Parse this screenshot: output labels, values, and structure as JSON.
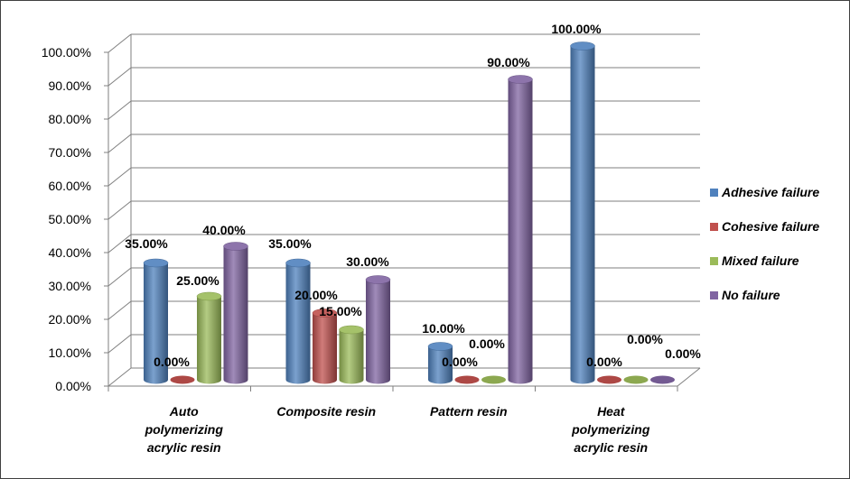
{
  "chart_data": {
    "type": "bar",
    "title": "",
    "xlabel": "",
    "ylabel": "",
    "ylim": [
      0,
      100
    ],
    "y_ticks": [
      "0.00%",
      "10.00%",
      "20.00%",
      "30.00%",
      "40.00%",
      "50.00%",
      "60.00%",
      "70.00%",
      "80.00%",
      "90.00%",
      "100.00%"
    ],
    "categories": [
      [
        "Auto",
        "polymerizing",
        "acrylic resin"
      ],
      [
        "Composite resin"
      ],
      [
        "Pattern resin"
      ],
      [
        "Heat",
        "polymerizing",
        "acrylic resin"
      ]
    ],
    "series": [
      {
        "name": "Adhesive failure",
        "color": "#4f81bd",
        "values": [
          35,
          35,
          10,
          100
        ],
        "labels": [
          "35.00%",
          "35.00%",
          "10.00%",
          "100.00%"
        ]
      },
      {
        "name": "Cohesive failure",
        "color": "#c0504d",
        "values": [
          0,
          20,
          0,
          0
        ],
        "labels": [
          "0.00%",
          "20.00%",
          "0.00%",
          "0.00%"
        ]
      },
      {
        "name": "Mixed failure",
        "color": "#9bbb59",
        "values": [
          25,
          15,
          0,
          0
        ],
        "labels": [
          "25.00%",
          "15.00%",
          "0.00%",
          "0.00%"
        ]
      },
      {
        "name": "No failure",
        "color": "#8064a2",
        "values": [
          40,
          30,
          90,
          0
        ],
        "labels": [
          "40.00%",
          "30.00%",
          "90.00%",
          "0.00%"
        ]
      }
    ],
    "grid": true,
    "legend_position": "right",
    "style": "3d-cylinder"
  }
}
